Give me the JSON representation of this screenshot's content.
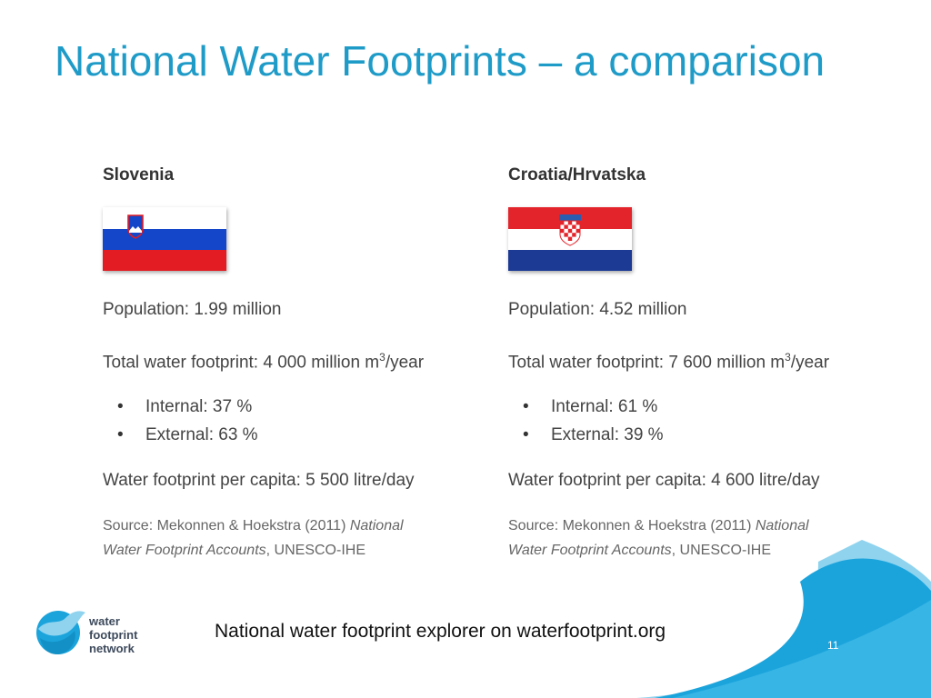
{
  "title": "National Water Footprints – a comparison",
  "colors": {
    "accent": "#1f9bc8",
    "wave_light": "#8fd3ee",
    "wave_dark": "#1ba4dc"
  },
  "countries": [
    {
      "name": "Slovenia",
      "flag": "slovenia-flag",
      "population": "Population: 1.99 million",
      "total_prefix": "Total water footprint: 4 000 million m",
      "total_sup": "3",
      "total_suffix": "/year",
      "internal": "Internal: 37 %",
      "external": "External: 63 %",
      "per_capita": "Water footprint per capita: 5 500 litre/day",
      "source_prefix": "Source: Mekonnen & Hoekstra (2011) ",
      "source_italic_1": "National",
      "source_italic_2": "Water Footprint Accounts",
      "source_suffix": ", UNESCO-IHE"
    },
    {
      "name": "Croatia/Hrvatska",
      "flag": "croatia-flag",
      "population": "Population: 4.52 million",
      "total_prefix": "Total water footprint: 7 600 million m",
      "total_sup": "3",
      "total_suffix": "/year",
      "internal": "Internal: 61 %",
      "external": "External: 39 %",
      "per_capita": "Water footprint per capita: 4 600 litre/day",
      "source_prefix": "Source: Mekonnen & Hoekstra (2011) ",
      "source_italic_1": "National",
      "source_italic_2": "Water Footprint Accounts",
      "source_suffix": ", UNESCO-IHE"
    }
  ],
  "footer": {
    "text": "National water footprint explorer on waterfootprint.org",
    "page_number": "11"
  },
  "logo": {
    "line1": "water",
    "line2": "footprint",
    "line3": "network"
  }
}
